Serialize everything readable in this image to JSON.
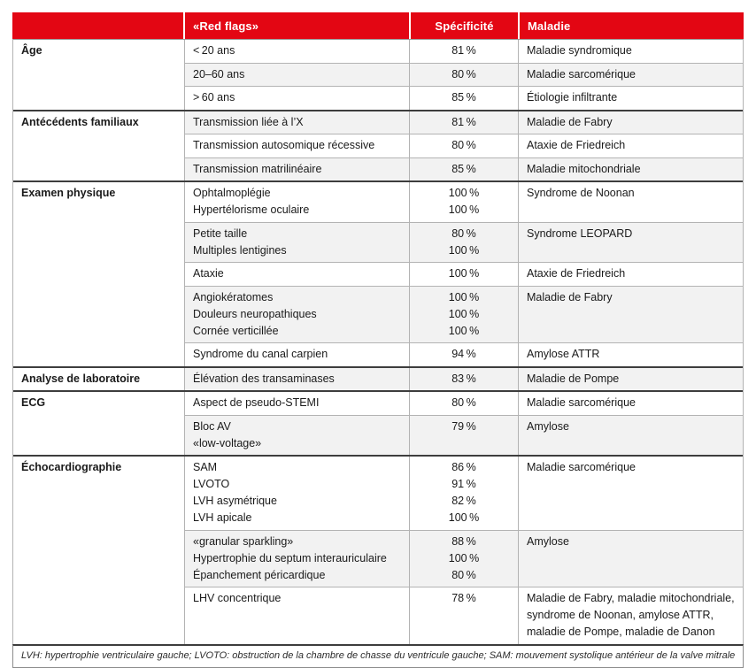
{
  "colors": {
    "header_red": "#e30613",
    "alt_row_gray": "#f2f2f2",
    "group_separator": "#3d3d3d",
    "cell_border": "#b3b3b3"
  },
  "table": {
    "header": {
      "category": "",
      "red_flags": "«Red flags»",
      "specificity": "Spécificité",
      "disease": "Maladie"
    },
    "groups": [
      {
        "category": "Âge",
        "rows": [
          {
            "flags": [
              "< 20 ans"
            ],
            "spec": [
              "81 %"
            ],
            "maladie": "Maladie syndromique"
          },
          {
            "flags": [
              "20–60 ans"
            ],
            "spec": [
              "80 %"
            ],
            "maladie": "Maladie sarcomérique"
          },
          {
            "flags": [
              "> 60 ans"
            ],
            "spec": [
              "85 %"
            ],
            "maladie": "Étiologie infiltrante"
          }
        ]
      },
      {
        "category": "Antécédents familiaux",
        "rows": [
          {
            "flags": [
              "Transmission liée à l’X"
            ],
            "spec": [
              "81 %"
            ],
            "maladie": "Maladie de Fabry"
          },
          {
            "flags": [
              "Transmission autosomique récessive"
            ],
            "spec": [
              "80 %"
            ],
            "maladie": "Ataxie de Friedreich"
          },
          {
            "flags": [
              "Transmission matrilinéaire"
            ],
            "spec": [
              "85 %"
            ],
            "maladie": "Maladie mitochondriale"
          }
        ]
      },
      {
        "category": "Examen physique",
        "rows": [
          {
            "flags": [
              "Ophtalmoplégie",
              "Hypertélorisme oculaire"
            ],
            "spec": [
              "100 %",
              "100 %"
            ],
            "maladie": "Syndrome de Noonan"
          },
          {
            "flags": [
              "Petite taille",
              "Multiples lentigines"
            ],
            "spec": [
              "80 %",
              "100 %"
            ],
            "maladie": "Syndrome LEOPARD"
          },
          {
            "flags": [
              "Ataxie"
            ],
            "spec": [
              "100 %"
            ],
            "maladie": "Ataxie de Friedreich"
          },
          {
            "flags": [
              "Angiokératomes",
              "Douleurs neuropathiques",
              "Cornée verticillée"
            ],
            "spec": [
              "100 %",
              "100 %",
              "100 %"
            ],
            "maladie": "Maladie de Fabry"
          },
          {
            "flags": [
              "Syndrome du canal carpien"
            ],
            "spec": [
              "94 %"
            ],
            "maladie": "Amylose ATTR"
          }
        ]
      },
      {
        "category": "Analyse de laboratoire",
        "rows": [
          {
            "flags": [
              "Élévation des transaminases"
            ],
            "spec": [
              "83 %"
            ],
            "maladie": "Maladie de Pompe"
          }
        ]
      },
      {
        "category": "ECG",
        "rows": [
          {
            "flags": [
              "Aspect de pseudo-STEMI"
            ],
            "spec": [
              "80 %"
            ],
            "maladie": "Maladie sarcomérique"
          },
          {
            "flags": [
              "Bloc AV",
              "«low-voltage»"
            ],
            "spec": [
              "79 %",
              ""
            ],
            "maladie": "Amylose"
          }
        ]
      },
      {
        "category": "Échocardiographie",
        "rows": [
          {
            "flags": [
              "SAM",
              "LVOTO",
              "LVH asymétrique",
              "LVH apicale"
            ],
            "spec": [
              "86 %",
              "91 %",
              "82 %",
              "100 %"
            ],
            "maladie": "Maladie sarcomérique"
          },
          {
            "flags": [
              "«granular sparkling»",
              "Hypertrophie du septum interauriculaire",
              "Épanchement péricardique"
            ],
            "spec": [
              "88 %",
              "100 %",
              "80 %"
            ],
            "maladie": "Amylose"
          },
          {
            "flags": [
              "LHV concentrique"
            ],
            "spec": [
              "78 %"
            ],
            "maladie": "Maladie de Fabry, maladie mitochondriale, syndrome de Noonan, amylose ATTR, maladie de Pompe, maladie de Danon"
          }
        ]
      }
    ],
    "footnote": "LVH: hypertrophie ventriculaire gauche; LVOTO: obstruction de la chambre de chasse du ventricule gauche; SAM: mouvement systolique antérieur de la valve mitrale"
  }
}
